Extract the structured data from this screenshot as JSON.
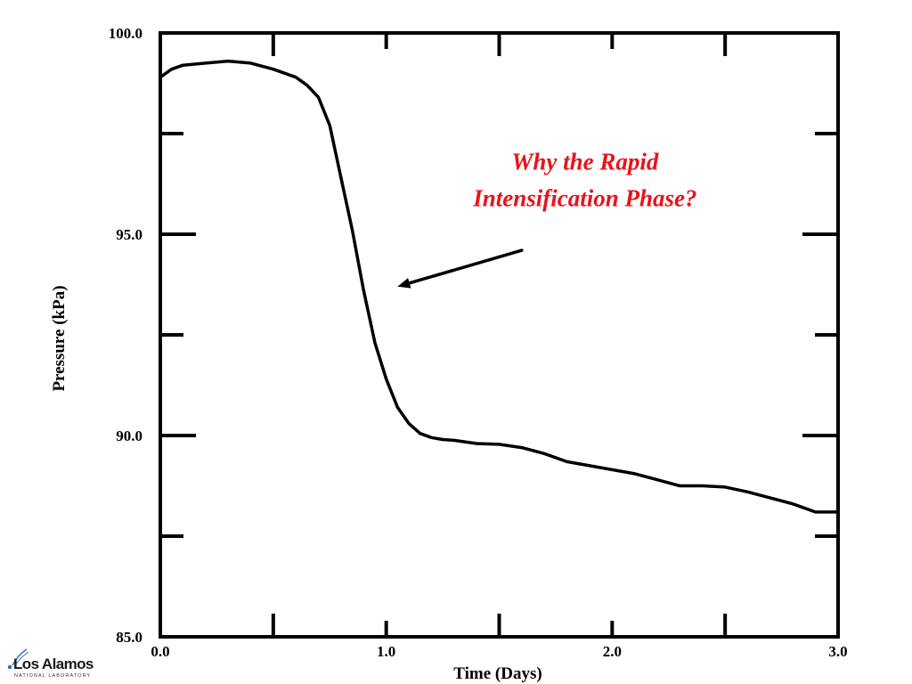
{
  "chart_data": {
    "type": "line",
    "xlabel": "Time (Days)",
    "ylabel": "Pressure (kPa)",
    "xlim": [
      0.0,
      3.0
    ],
    "ylim": [
      85.0,
      100.0
    ],
    "x_ticks": [
      "0.0",
      "1.0",
      "2.0",
      "3.0"
    ],
    "y_ticks": [
      "85.0",
      "90.0",
      "95.0",
      "100.0"
    ],
    "x_tick_values": [
      0.0,
      1.0,
      2.0,
      3.0
    ],
    "y_tick_values": [
      85.0,
      90.0,
      95.0,
      100.0
    ],
    "x_minor_tick_values": [
      0.5,
      1.5,
      2.5
    ],
    "y_minor_tick_values": [
      87.5,
      92.5,
      97.5
    ],
    "grid": false,
    "series": [
      {
        "color": "#000000",
        "x": [
          0.0,
          0.05,
          0.1,
          0.2,
          0.3,
          0.4,
          0.5,
          0.6,
          0.65,
          0.7,
          0.75,
          0.8,
          0.85,
          0.9,
          0.95,
          1.0,
          1.05,
          1.1,
          1.15,
          1.2,
          1.25,
          1.3,
          1.4,
          1.5,
          1.6,
          1.7,
          1.8,
          1.9,
          2.0,
          2.1,
          2.2,
          2.3,
          2.4,
          2.5,
          2.6,
          2.7,
          2.8,
          2.9,
          3.0
        ],
        "y": [
          98.9,
          99.1,
          99.2,
          99.25,
          99.3,
          99.25,
          99.1,
          98.9,
          98.7,
          98.4,
          97.7,
          96.4,
          95.1,
          93.6,
          92.3,
          91.4,
          90.7,
          90.3,
          90.05,
          89.95,
          89.9,
          89.88,
          89.8,
          89.78,
          89.7,
          89.55,
          89.35,
          89.25,
          89.15,
          89.05,
          88.9,
          88.75,
          88.75,
          88.72,
          88.6,
          88.45,
          88.3,
          88.1,
          88.1
        ]
      }
    ],
    "annotations": [
      {
        "text": "Why the Rapid\nIntensification Phase?",
        "lines": [
          "Why the Rapid",
          "Intensification Phase?"
        ],
        "color": "#e8131b",
        "arrow_to": [
          1.05,
          93.7
        ],
        "arrow_from": [
          1.6,
          94.6
        ]
      }
    ]
  },
  "logo": {
    "name": "Los Alamos",
    "subtitle": "NATIONAL LABORATORY"
  }
}
